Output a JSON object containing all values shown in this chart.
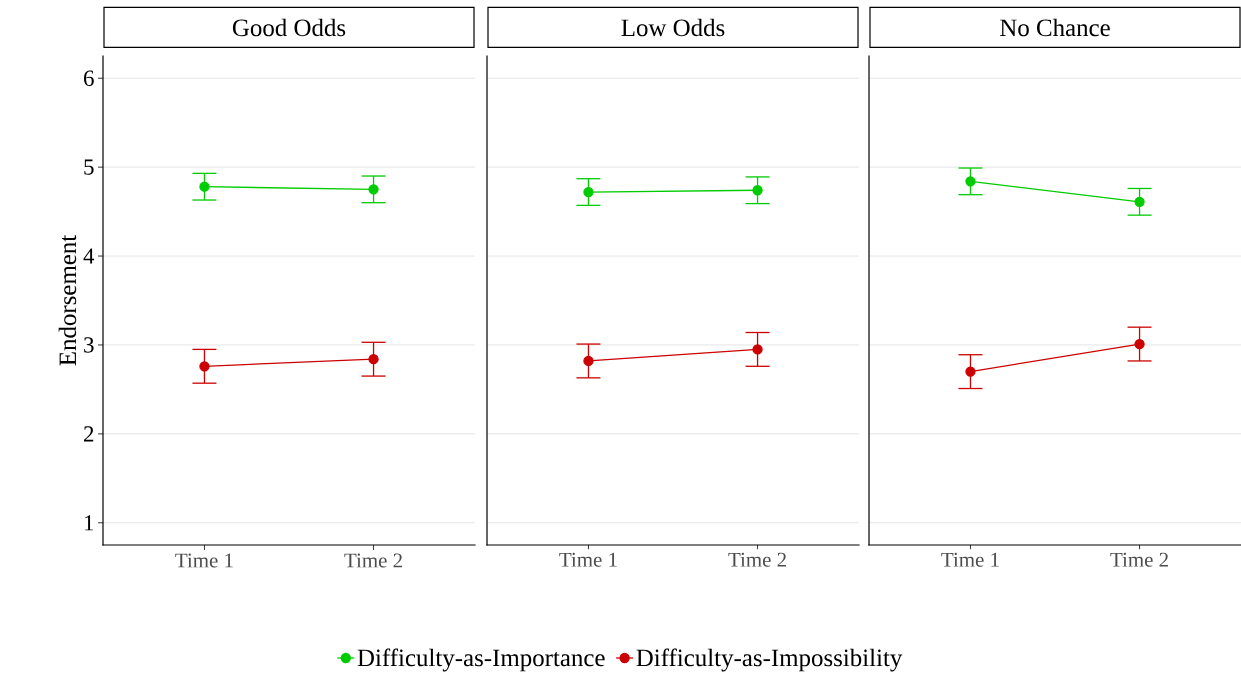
{
  "chart_data": [
    {
      "type": "line",
      "title": "Good Odds",
      "ylabel": "Endorsement",
      "categories": [
        "Time 1",
        "Time 2"
      ],
      "ylim": [
        0.75,
        6.25
      ],
      "yticks": [
        1,
        2,
        3,
        4,
        5,
        6
      ],
      "grid": "y",
      "marker": "circle",
      "legend": "bottom",
      "series": [
        {
          "name": "Difficulty-as-Importance",
          "color": "#00cc00",
          "values": [
            4.78,
            4.75
          ],
          "errors": [
            0.15,
            0.15
          ]
        },
        {
          "name": "Difficulty-as-Impossibility",
          "color": "#cc0000",
          "values": [
            2.76,
            2.84
          ],
          "errors": [
            0.19,
            0.19
          ]
        }
      ]
    },
    {
      "type": "line",
      "title": "Low Odds",
      "categories": [
        "Time 1",
        "Time 2"
      ],
      "ylim": [
        0.75,
        6.25
      ],
      "yticks": [
        1,
        2,
        3,
        4,
        5,
        6
      ],
      "grid": "y",
      "marker": "circle",
      "tick_labels": "x",
      "series": [
        {
          "color": "#00cc00",
          "values": [
            4.72,
            4.74
          ],
          "errors": [
            0.15,
            0.15
          ]
        },
        {
          "color": "#cc0000",
          "values": [
            2.82,
            2.95
          ],
          "errors": [
            0.19,
            0.19
          ]
        }
      ]
    },
    {
      "type": "line",
      "title": "No Chance",
      "categories": [
        "Time 1",
        "Time 2"
      ],
      "ylim": [
        0.75,
        6.25
      ],
      "yticks": [
        1,
        2,
        3,
        4,
        5,
        6
      ],
      "grid": "y",
      "marker": "circle",
      "tick_labels": "x",
      "series": [
        {
          "color": "#00cc00",
          "values": [
            4.84,
            4.61
          ],
          "errors": [
            0.15,
            0.15
          ]
        },
        {
          "color": "#cc0000",
          "values": [
            2.7,
            3.01
          ],
          "errors": [
            0.19,
            0.19
          ]
        }
      ]
    }
  ]
}
